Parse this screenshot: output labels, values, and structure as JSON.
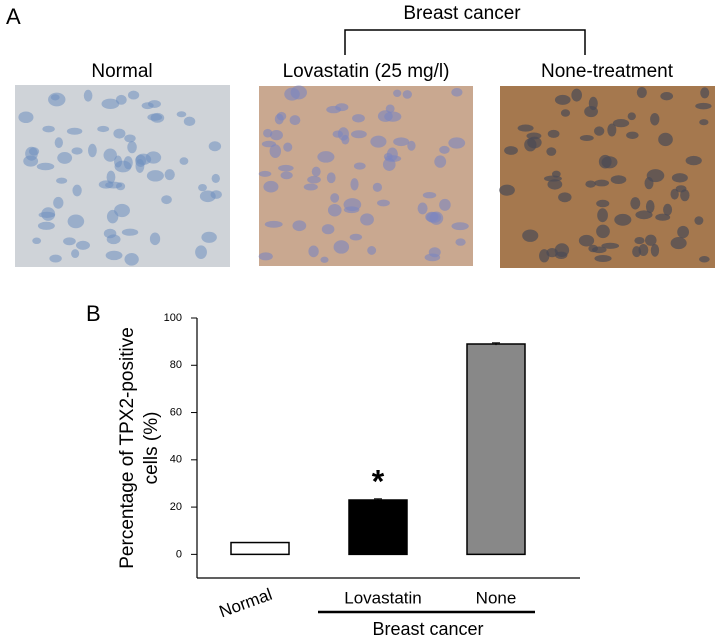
{
  "panel_a": {
    "label": "A",
    "group_label": "Breast cancer",
    "images": [
      {
        "title": "Normal"
      },
      {
        "title": "Lovastatin (25 mg/l)"
      },
      {
        "title": "None-treatment"
      }
    ]
  },
  "chart_data": {
    "type": "bar",
    "panel_label": "B",
    "ylabel_lines": [
      "Percentage of TPX2-positive",
      "cells (%)"
    ],
    "categories": [
      "Normal",
      "Lovastatin",
      "None"
    ],
    "values": [
      5,
      23,
      89
    ],
    "errors": [
      0,
      0.5,
      0.5
    ],
    "colors": [
      "#ffffff",
      "#000000",
      "#888888"
    ],
    "group_label": "Breast cancer",
    "annotation": "*",
    "ylim": [
      -10,
      100
    ],
    "yticks": [
      0,
      20,
      40,
      60,
      80,
      100
    ],
    "grid": false
  }
}
